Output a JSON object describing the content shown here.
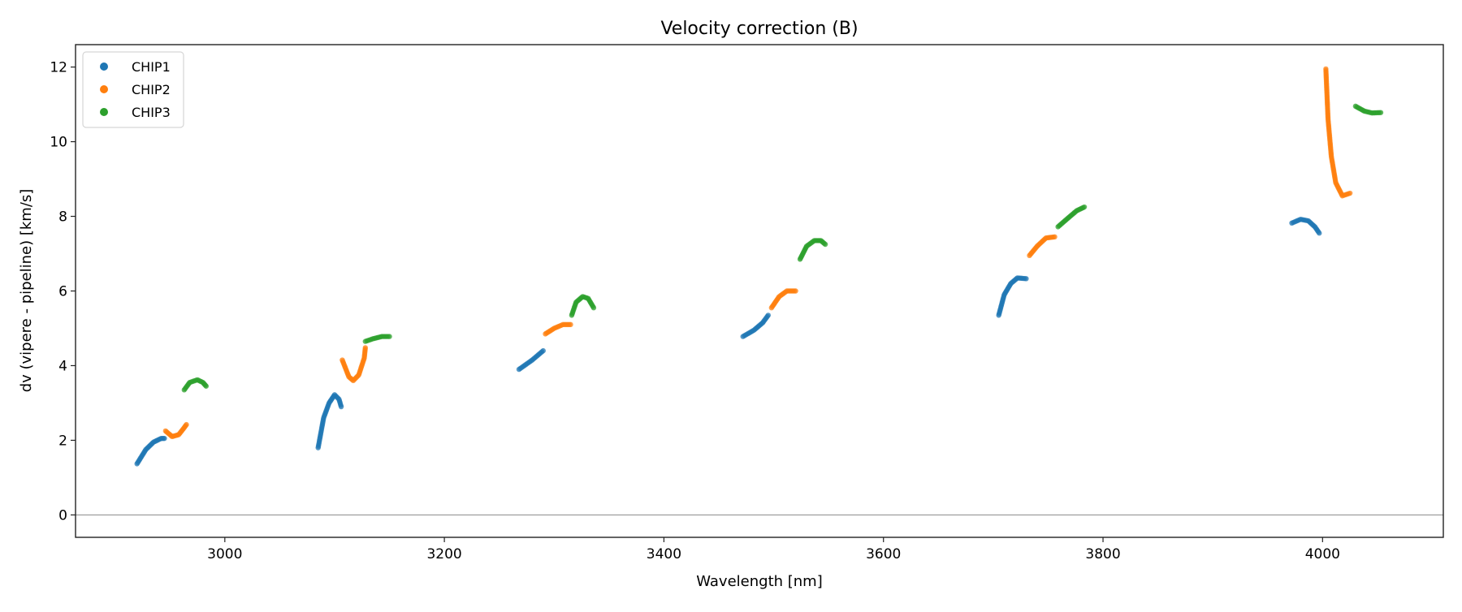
{
  "chart_data": {
    "type": "scatter",
    "title": "Velocity correction (B)",
    "xlabel": "Wavelength [nm]",
    "ylabel": "dv (vipere - pipeline) [km/s]",
    "xlim": [
      2864,
      4110
    ],
    "ylim": [
      -0.6,
      12.6
    ],
    "xticks": [
      3000,
      3200,
      3400,
      3600,
      3800,
      4000
    ],
    "yticks": [
      0,
      2,
      4,
      6,
      8,
      10,
      12
    ],
    "grid": false,
    "hline": 0,
    "legend": {
      "placement": "top-left",
      "entries": [
        "CHIP1",
        "CHIP2",
        "CHIP3"
      ]
    },
    "series": [
      {
        "name": "CHIP1",
        "color": "#1f77b4",
        "segments": [
          [
            [
              2920,
              1.37
            ],
            [
              2928,
              1.75
            ],
            [
              2935,
              1.95
            ],
            [
              2942,
              2.05
            ],
            [
              2945,
              2.05
            ]
          ],
          [
            [
              3085,
              1.8
            ],
            [
              3090,
              2.6
            ],
            [
              3095,
              3.0
            ],
            [
              3100,
              3.22
            ],
            [
              3104,
              3.1
            ],
            [
              3106,
              2.9
            ]
          ],
          [
            [
              3268,
              3.9
            ],
            [
              3280,
              4.15
            ],
            [
              3290,
              4.4
            ]
          ],
          [
            [
              3472,
              4.78
            ],
            [
              3482,
              4.95
            ],
            [
              3490,
              5.15
            ],
            [
              3495,
              5.35
            ]
          ],
          [
            [
              3705,
              5.35
            ],
            [
              3710,
              5.9
            ],
            [
              3716,
              6.2
            ],
            [
              3722,
              6.35
            ],
            [
              3730,
              6.33
            ]
          ],
          [
            [
              3972,
              7.82
            ],
            [
              3980,
              7.92
            ],
            [
              3987,
              7.88
            ],
            [
              3993,
              7.72
            ],
            [
              3997,
              7.55
            ]
          ]
        ]
      },
      {
        "name": "CHIP2",
        "color": "#ff7f0e",
        "segments": [
          [
            [
              2946,
              2.25
            ],
            [
              2952,
              2.1
            ],
            [
              2958,
              2.15
            ],
            [
              2962,
              2.3
            ],
            [
              2965,
              2.42
            ]
          ],
          [
            [
              3107,
              4.15
            ],
            [
              3113,
              3.7
            ],
            [
              3117,
              3.6
            ],
            [
              3122,
              3.75
            ],
            [
              3127,
              4.2
            ],
            [
              3128,
              4.48
            ]
          ],
          [
            [
              3292,
              4.85
            ],
            [
              3300,
              5.0
            ],
            [
              3308,
              5.1
            ],
            [
              3315,
              5.1
            ]
          ],
          [
            [
              3498,
              5.55
            ],
            [
              3505,
              5.85
            ],
            [
              3512,
              6.0
            ],
            [
              3520,
              6.0
            ]
          ],
          [
            [
              3733,
              6.95
            ],
            [
              3740,
              7.2
            ],
            [
              3748,
              7.42
            ],
            [
              3756,
              7.45
            ]
          ],
          [
            [
              4003,
              11.95
            ],
            [
              4005,
              10.6
            ],
            [
              4008,
              9.6
            ],
            [
              4012,
              8.9
            ],
            [
              4018,
              8.55
            ],
            [
              4025,
              8.62
            ]
          ]
        ]
      },
      {
        "name": "CHIP3",
        "color": "#2ca02c",
        "segments": [
          [
            [
              2963,
              3.35
            ],
            [
              2968,
              3.55
            ],
            [
              2975,
              3.62
            ],
            [
              2980,
              3.55
            ],
            [
              2983,
              3.45
            ]
          ],
          [
            [
              3128,
              4.65
            ],
            [
              3135,
              4.72
            ],
            [
              3143,
              4.78
            ],
            [
              3150,
              4.78
            ]
          ],
          [
            [
              3316,
              5.35
            ],
            [
              3320,
              5.7
            ],
            [
              3326,
              5.85
            ],
            [
              3331,
              5.8
            ],
            [
              3336,
              5.55
            ]
          ],
          [
            [
              3524,
              6.85
            ],
            [
              3530,
              7.2
            ],
            [
              3537,
              7.35
            ],
            [
              3543,
              7.35
            ],
            [
              3547,
              7.25
            ]
          ],
          [
            [
              3759,
              7.72
            ],
            [
              3768,
              7.95
            ],
            [
              3776,
              8.15
            ],
            [
              3783,
              8.25
            ]
          ],
          [
            [
              4030,
              10.95
            ],
            [
              4038,
              10.82
            ],
            [
              4045,
              10.77
            ],
            [
              4053,
              10.78
            ]
          ]
        ]
      }
    ]
  }
}
